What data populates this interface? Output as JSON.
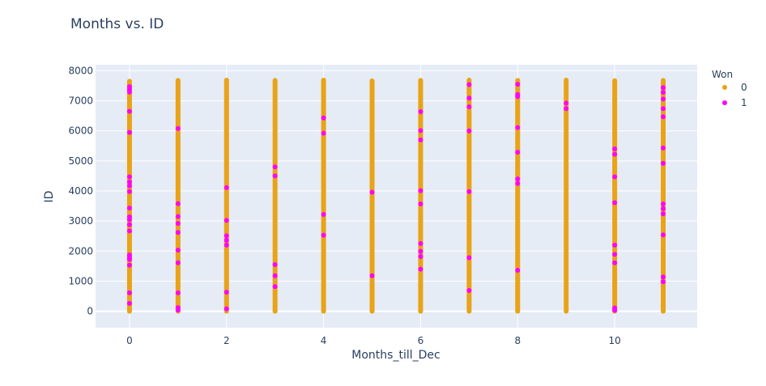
{
  "chart_data": {
    "type": "scatter",
    "title": "Months vs. ID",
    "xlabel": "Months_till_Dec",
    "ylabel": "ID",
    "xlim": [
      -0.7,
      11.7
    ],
    "ylim": [
      -550,
      8200
    ],
    "x_ticks": [
      0,
      2,
      4,
      6,
      8,
      10
    ],
    "y_ticks": [
      0,
      1000,
      2000,
      3000,
      4000,
      5000,
      6000,
      7000,
      8000
    ],
    "grid": true,
    "legend": {
      "title": "Won",
      "position": "top-right"
    },
    "colors": {
      "plot_bg": "#e5ecf6",
      "grid": "#ffffff",
      "text": "#2a3f5f"
    },
    "series": [
      {
        "name": "0",
        "color": "#e8a317",
        "ranges": [
          {
            "x": 0,
            "y": [
              0,
              7650
            ]
          },
          {
            "x": 1,
            "y": [
              0,
              7680
            ]
          },
          {
            "x": 2,
            "y": [
              0,
              7690
            ]
          },
          {
            "x": 3,
            "y": [
              0,
              7680
            ]
          },
          {
            "x": 4,
            "y": [
              0,
              7690
            ]
          },
          {
            "x": 5,
            "y": [
              0,
              7660
            ]
          },
          {
            "x": 6,
            "y": [
              0,
              7680
            ]
          },
          {
            "x": 7,
            "y": [
              0,
              7690
            ]
          },
          {
            "x": 8,
            "y": [
              0,
              7680
            ]
          },
          {
            "x": 9,
            "y": [
              0,
              7690
            ]
          },
          {
            "x": 10,
            "y": [
              0,
              7670
            ]
          },
          {
            "x": 11,
            "y": [
              0,
              7680
            ]
          }
        ]
      },
      {
        "name": "1",
        "color": "#ff00ff",
        "points": [
          {
            "x": 0,
            "y": 7470
          },
          {
            "x": 0,
            "y": 7380
          },
          {
            "x": 0,
            "y": 7290
          },
          {
            "x": 0,
            "y": 6650
          },
          {
            "x": 0,
            "y": 5950
          },
          {
            "x": 0,
            "y": 4470
          },
          {
            "x": 0,
            "y": 4300
          },
          {
            "x": 0,
            "y": 4170
          },
          {
            "x": 0,
            "y": 3980
          },
          {
            "x": 0,
            "y": 3430
          },
          {
            "x": 0,
            "y": 3140
          },
          {
            "x": 0,
            "y": 3050
          },
          {
            "x": 0,
            "y": 2880
          },
          {
            "x": 0,
            "y": 2670
          },
          {
            "x": 0,
            "y": 1870
          },
          {
            "x": 0,
            "y": 1780
          },
          {
            "x": 0,
            "y": 1720
          },
          {
            "x": 0,
            "y": 1530
          },
          {
            "x": 0,
            "y": 610
          },
          {
            "x": 0,
            "y": 260
          },
          {
            "x": 1,
            "y": 6080
          },
          {
            "x": 1,
            "y": 3580
          },
          {
            "x": 1,
            "y": 3150
          },
          {
            "x": 1,
            "y": 2920
          },
          {
            "x": 1,
            "y": 2620
          },
          {
            "x": 1,
            "y": 2030
          },
          {
            "x": 1,
            "y": 1610
          },
          {
            "x": 1,
            "y": 610
          },
          {
            "x": 1,
            "y": 120
          },
          {
            "x": 1,
            "y": 40
          },
          {
            "x": 2,
            "y": 4110
          },
          {
            "x": 2,
            "y": 3020
          },
          {
            "x": 2,
            "y": 2510
          },
          {
            "x": 2,
            "y": 2360
          },
          {
            "x": 2,
            "y": 2200
          },
          {
            "x": 2,
            "y": 630
          },
          {
            "x": 2,
            "y": 80
          },
          {
            "x": 3,
            "y": 4800
          },
          {
            "x": 3,
            "y": 4500
          },
          {
            "x": 3,
            "y": 1550
          },
          {
            "x": 3,
            "y": 1180
          },
          {
            "x": 3,
            "y": 820
          },
          {
            "x": 4,
            "y": 6430
          },
          {
            "x": 4,
            "y": 5920
          },
          {
            "x": 4,
            "y": 3220
          },
          {
            "x": 4,
            "y": 2530
          },
          {
            "x": 5,
            "y": 3960
          },
          {
            "x": 5,
            "y": 1180
          },
          {
            "x": 6,
            "y": 6640
          },
          {
            "x": 6,
            "y": 6010
          },
          {
            "x": 6,
            "y": 5700
          },
          {
            "x": 6,
            "y": 4010
          },
          {
            "x": 6,
            "y": 3570
          },
          {
            "x": 6,
            "y": 2250
          },
          {
            "x": 6,
            "y": 1990
          },
          {
            "x": 6,
            "y": 1820
          },
          {
            "x": 6,
            "y": 1400
          },
          {
            "x": 7,
            "y": 7540
          },
          {
            "x": 7,
            "y": 7090
          },
          {
            "x": 7,
            "y": 6800
          },
          {
            "x": 7,
            "y": 6000
          },
          {
            "x": 7,
            "y": 3980
          },
          {
            "x": 7,
            "y": 1780
          },
          {
            "x": 7,
            "y": 690
          },
          {
            "x": 8,
            "y": 7550
          },
          {
            "x": 8,
            "y": 7210
          },
          {
            "x": 8,
            "y": 7140
          },
          {
            "x": 8,
            "y": 6110
          },
          {
            "x": 8,
            "y": 5290
          },
          {
            "x": 8,
            "y": 4400
          },
          {
            "x": 8,
            "y": 4250
          },
          {
            "x": 8,
            "y": 1360
          },
          {
            "x": 9,
            "y": 6920
          },
          {
            "x": 9,
            "y": 6740
          },
          {
            "x": 10,
            "y": 5400
          },
          {
            "x": 10,
            "y": 5220
          },
          {
            "x": 10,
            "y": 4470
          },
          {
            "x": 10,
            "y": 3610
          },
          {
            "x": 10,
            "y": 2200
          },
          {
            "x": 10,
            "y": 1890
          },
          {
            "x": 10,
            "y": 1610
          },
          {
            "x": 10,
            "y": 110
          },
          {
            "x": 10,
            "y": 30
          },
          {
            "x": 11,
            "y": 7440
          },
          {
            "x": 11,
            "y": 7280
          },
          {
            "x": 11,
            "y": 7060
          },
          {
            "x": 11,
            "y": 6740
          },
          {
            "x": 11,
            "y": 6470
          },
          {
            "x": 11,
            "y": 5430
          },
          {
            "x": 11,
            "y": 4920
          },
          {
            "x": 11,
            "y": 3570
          },
          {
            "x": 11,
            "y": 3410
          },
          {
            "x": 11,
            "y": 3240
          },
          {
            "x": 11,
            "y": 2540
          },
          {
            "x": 11,
            "y": 1140
          },
          {
            "x": 11,
            "y": 980
          }
        ]
      }
    ]
  }
}
